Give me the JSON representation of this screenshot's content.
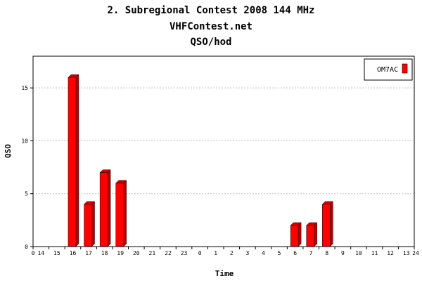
{
  "chart_data": {
    "type": "bar",
    "title": "2. Subregional Contest 2008 144 MHz",
    "subtitle": "VHFContest.net",
    "subtitle2": "QSO/hod",
    "xlabel": "Time",
    "ylabel": "QSO",
    "x_start_label": "0",
    "x_end_label": "24",
    "categories": [
      "14",
      "15",
      "16",
      "17",
      "18",
      "19",
      "20",
      "21",
      "22",
      "23",
      "0",
      "1",
      "2",
      "3",
      "4",
      "5",
      "6",
      "7",
      "8",
      "9",
      "10",
      "11",
      "12",
      "13"
    ],
    "series": [
      {
        "name": "OM7AC",
        "values": [
          0,
          0,
          16,
          4,
          7,
          6,
          0,
          0,
          0,
          0,
          0,
          0,
          0,
          0,
          0,
          0,
          2,
          2,
          4,
          0,
          0,
          0,
          0,
          0
        ]
      }
    ],
    "ylim": [
      0,
      18
    ],
    "yticks": [
      0,
      5,
      10,
      15
    ],
    "grid": true,
    "legend": "top-right",
    "colors": {
      "bar": "#ff0000",
      "bar_side": "#b80000",
      "bar_top": "#d40000",
      "grid": "#c0c0c0",
      "axis": "#000000"
    }
  }
}
